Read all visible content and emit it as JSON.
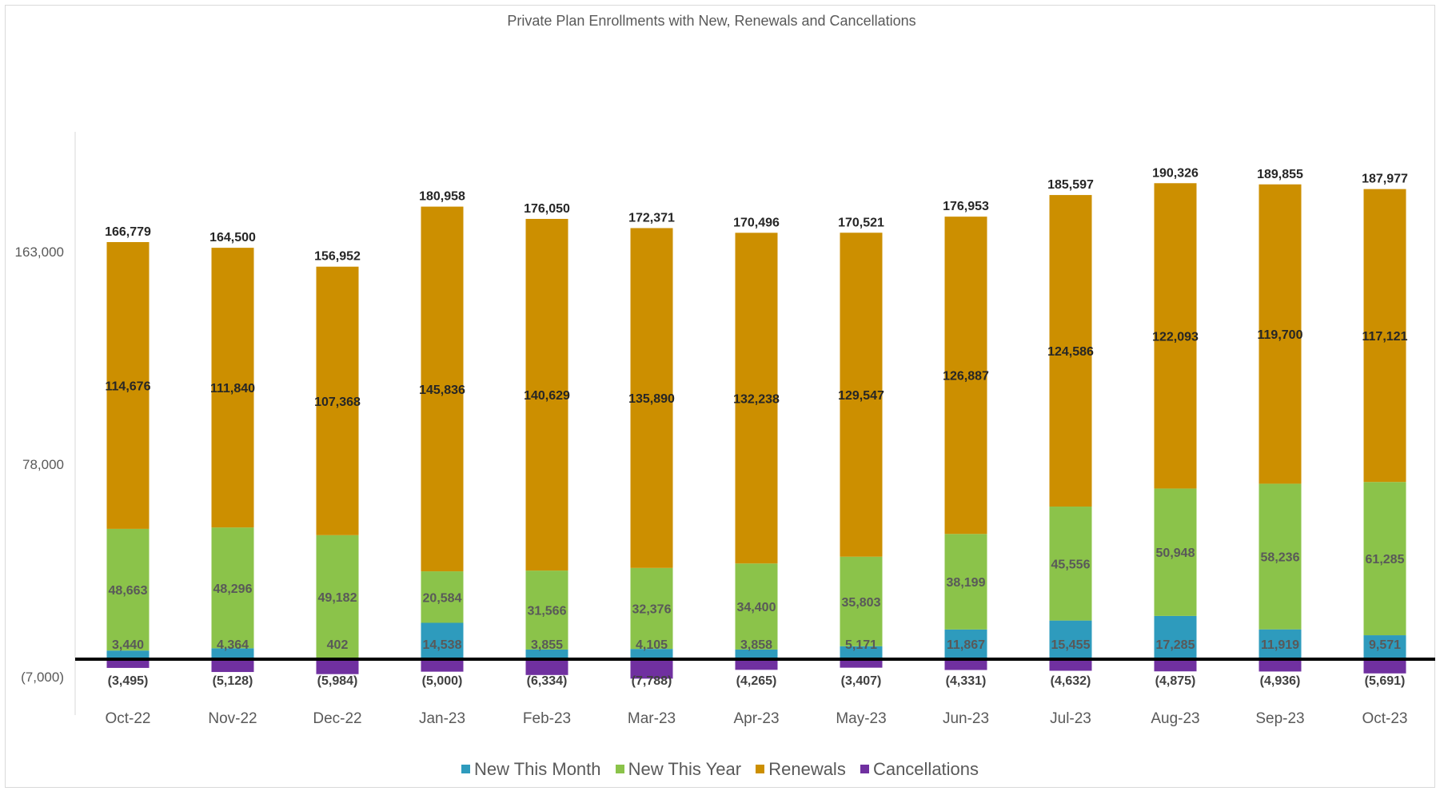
{
  "chart_data": {
    "type": "bar",
    "stacked": true,
    "title": "Private Plan Enrollments with New, Renewals and Cancellations",
    "xlabel": "",
    "ylabel": "",
    "ylim": [
      -7000,
      214000
    ],
    "yticks": [
      163000,
      78000,
      -7000
    ],
    "ytick_labels": [
      "163,000",
      "78,000",
      "(7,000)"
    ],
    "grid": false,
    "legend_position": "bottom",
    "categories": [
      "Oct-22",
      "Nov-22",
      "Dec-22",
      "Jan-23",
      "Feb-23",
      "Mar-23",
      "Apr-23",
      "May-23",
      "Jun-23",
      "Jul-23",
      "Aug-23",
      "Sep-23",
      "Oct-23"
    ],
    "series": [
      {
        "name": "New This Month",
        "color": "#2e9bbd",
        "values": [
          3440,
          4364,
          402,
          14538,
          3855,
          4105,
          3858,
          5171,
          11867,
          15455,
          17285,
          11919,
          9571
        ],
        "labels": [
          "3,440",
          "4,364",
          "402",
          "14,538",
          "3,855",
          "4,105",
          "3,858",
          "5,171",
          "11,867",
          "15,455",
          "17,285",
          "11,919",
          "9,571"
        ]
      },
      {
        "name": "New This Year",
        "color": "#8bc34a",
        "values": [
          48663,
          48296,
          49182,
          20584,
          31566,
          32376,
          34400,
          35803,
          38199,
          45556,
          50948,
          58236,
          61285
        ],
        "labels": [
          "48,663",
          "48,296",
          "49,182",
          "20,584",
          "31,566",
          "32,376",
          "34,400",
          "35,803",
          "38,199",
          "45,556",
          "50,948",
          "58,236",
          "61,285"
        ]
      },
      {
        "name": "Renewals",
        "color": "#cc8f00",
        "values": [
          114676,
          111840,
          107368,
          145836,
          140629,
          135890,
          132238,
          129547,
          126887,
          124586,
          122093,
          119700,
          117121
        ],
        "labels": [
          "114,676",
          "111,840",
          "107,368",
          "145,836",
          "140,629",
          "135,890",
          "132,238",
          "129,547",
          "126,887",
          "124,586",
          "122,093",
          "119,700",
          "117,121"
        ]
      },
      {
        "name": "Cancellations",
        "color": "#7030a0",
        "values": [
          -3495,
          -5128,
          -5984,
          -5000,
          -6334,
          -7788,
          -4265,
          -3407,
          -4331,
          -4632,
          -4875,
          -4936,
          -5691
        ],
        "labels": [
          "(3,495)",
          "(5,128)",
          "(5,984)",
          "(5,000)",
          "(6,334)",
          "(7,788)",
          "(4,265)",
          "(3,407)",
          "(4,331)",
          "(4,632)",
          "(4,875)",
          "(4,936)",
          "(5,691)"
        ]
      }
    ],
    "totals": [
      166779,
      164500,
      156952,
      180958,
      176050,
      172371,
      170496,
      170521,
      176953,
      185597,
      190326,
      189855,
      187977
    ],
    "total_labels": [
      "166,779",
      "164,500",
      "156,952",
      "180,958",
      "176,050",
      "172,371",
      "170,496",
      "170,521",
      "176,953",
      "185,597",
      "190,326",
      "189,855",
      "187,977"
    ]
  }
}
